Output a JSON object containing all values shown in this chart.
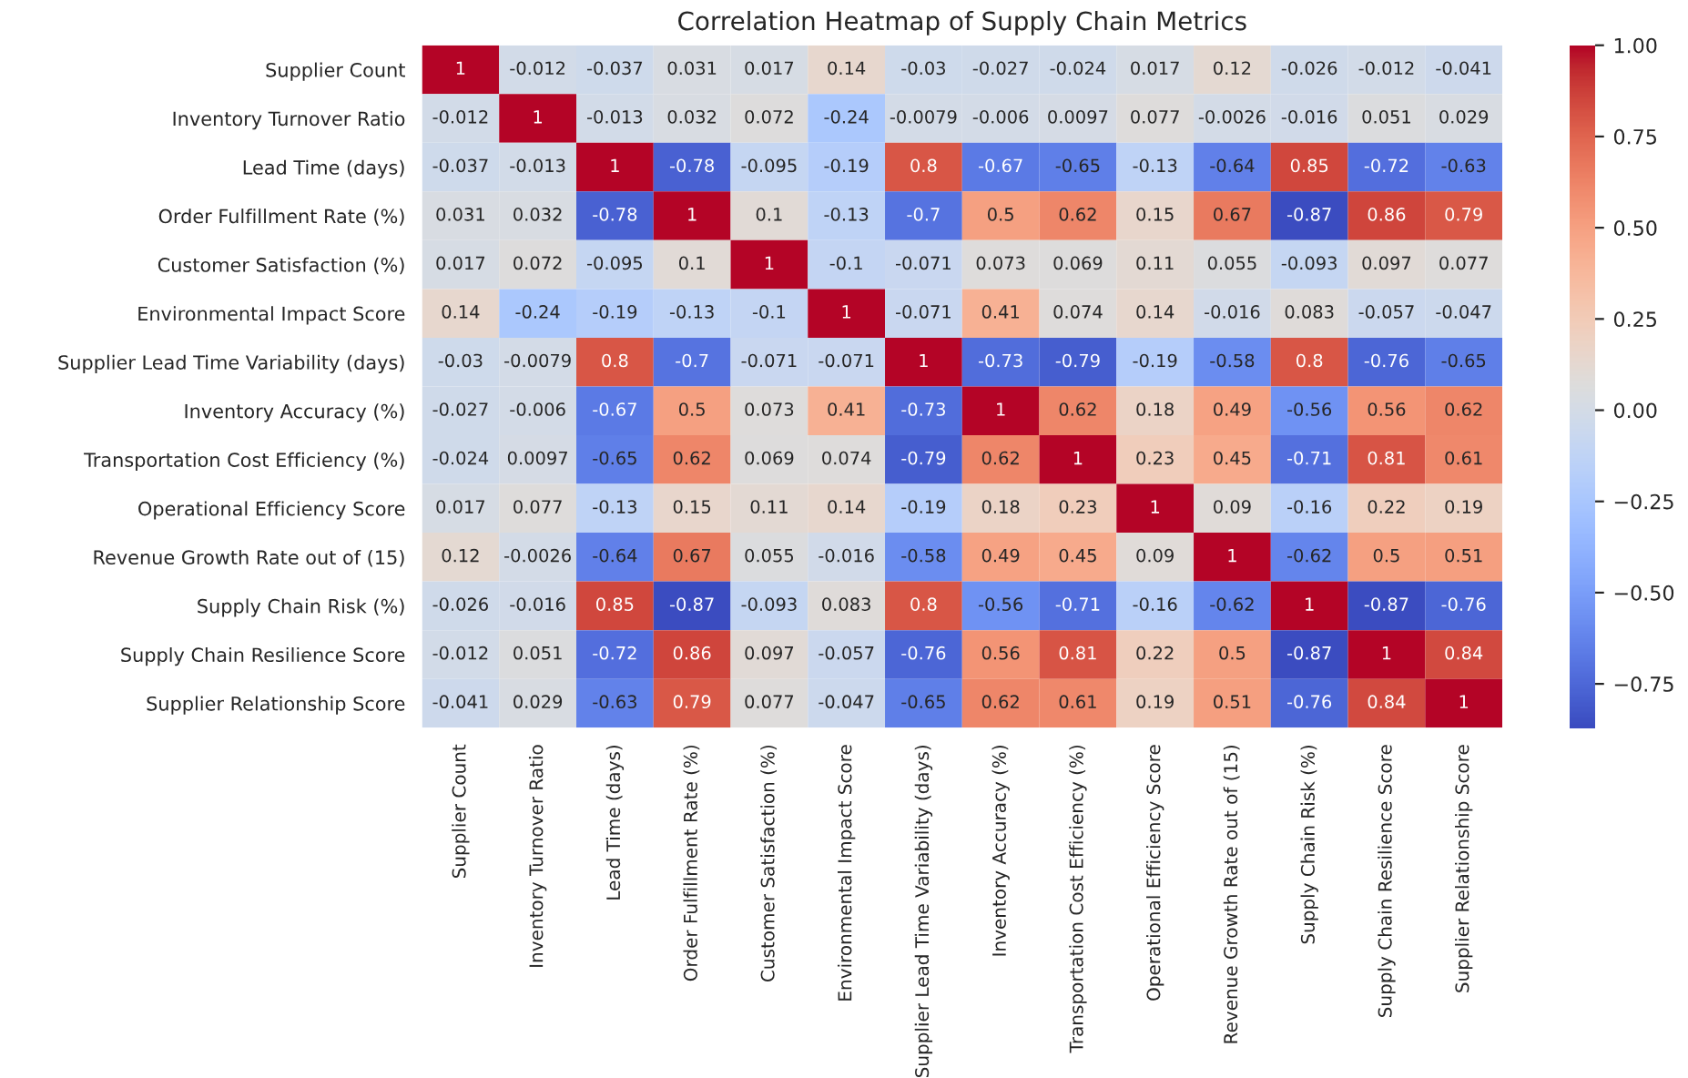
{
  "chart_data": {
    "type": "heatmap",
    "title": "Correlation Heatmap of Supply Chain Metrics",
    "categories": [
      "Supplier Count",
      "Inventory Turnover Ratio",
      "Lead Time (days)",
      "Order Fulfillment Rate (%)",
      "Customer Satisfaction (%)",
      "Environmental Impact Score",
      "Supplier Lead Time Variability (days)",
      "Inventory Accuracy (%)",
      "Transportation Cost Efficiency (%)",
      "Operational Efficiency Score",
      "Revenue Growth Rate out of (15)",
      "Supply Chain Risk (%)",
      "Supply Chain Resilience Score",
      "Supplier Relationship Score"
    ],
    "y_categories": [
      "Supplier Count",
      "Inventory Turnover Ratio",
      "Lead Time (days)",
      "Order Fulfillment Rate (%)",
      "Customer Satisfaction (%)",
      "Environmental Impact Score",
      "Supplier Lead Time Variability (days)",
      "Inventory Accuracy (%)",
      "Transportation Cost Efficiency (%)",
      "Operational Efficiency Score",
      "Revenue Growth Rate out of (15)",
      "Supply Chain Risk (%)",
      "Supply Chain Resilience Score",
      "Supplier Relationship Score"
    ],
    "cells": [
      [
        1,
        -0.012,
        -0.037,
        0.031,
        0.017,
        0.14,
        -0.03,
        -0.027,
        -0.024,
        0.017,
        0.12,
        -0.026,
        -0.012,
        -0.041
      ],
      [
        -0.012,
        1,
        -0.013,
        0.032,
        0.072,
        -0.24,
        -0.0079,
        -0.006,
        0.0097,
        0.077,
        -0.0026,
        -0.016,
        0.051,
        0.029
      ],
      [
        -0.037,
        -0.013,
        1,
        -0.78,
        -0.095,
        -0.19,
        0.8,
        -0.67,
        -0.65,
        -0.13,
        -0.64,
        0.85,
        -0.72,
        -0.63
      ],
      [
        0.031,
        0.032,
        -0.78,
        1,
        0.1,
        -0.13,
        -0.7,
        0.5,
        0.62,
        0.15,
        0.67,
        -0.87,
        0.86,
        0.79
      ],
      [
        0.017,
        0.072,
        -0.095,
        0.1,
        1,
        -0.1,
        -0.071,
        0.073,
        0.069,
        0.11,
        0.055,
        -0.093,
        0.097,
        0.077
      ],
      [
        0.14,
        -0.24,
        -0.19,
        -0.13,
        -0.1,
        1,
        -0.071,
        0.41,
        0.074,
        0.14,
        -0.016,
        0.083,
        -0.057,
        -0.047
      ],
      [
        -0.03,
        -0.0079,
        0.8,
        -0.7,
        -0.071,
        -0.071,
        1,
        -0.73,
        -0.79,
        -0.19,
        -0.58,
        0.8,
        -0.76,
        -0.65
      ],
      [
        -0.027,
        -0.006,
        -0.67,
        0.5,
        0.073,
        0.41,
        -0.73,
        1,
        0.62,
        0.18,
        0.49,
        -0.56,
        0.56,
        0.62
      ],
      [
        -0.024,
        0.0097,
        -0.65,
        0.62,
        0.069,
        0.074,
        -0.79,
        0.62,
        1,
        0.23,
        0.45,
        -0.71,
        0.81,
        0.61
      ],
      [
        0.017,
        0.077,
        -0.13,
        0.15,
        0.11,
        0.14,
        -0.19,
        0.18,
        0.23,
        1,
        0.09,
        -0.16,
        0.22,
        0.19
      ],
      [
        0.12,
        -0.0026,
        -0.64,
        0.67,
        0.055,
        -0.016,
        -0.58,
        0.49,
        0.45,
        0.09,
        1,
        -0.62,
        0.5,
        0.51
      ],
      [
        -0.026,
        -0.016,
        0.85,
        -0.87,
        -0.093,
        0.083,
        0.8,
        -0.56,
        -0.71,
        -0.16,
        -0.62,
        1,
        -0.87,
        -0.76
      ],
      [
        -0.012,
        0.051,
        -0.72,
        0.86,
        0.097,
        -0.057,
        -0.76,
        0.56,
        0.81,
        0.22,
        0.5,
        -0.87,
        1,
        0.84
      ],
      [
        -0.041,
        0.029,
        -0.63,
        0.79,
        0.077,
        -0.047,
        -0.65,
        0.62,
        0.61,
        0.19,
        0.51,
        -0.76,
        0.84,
        1
      ]
    ],
    "data_labels": true,
    "clim": [
      -0.87,
      1
    ],
    "cticks": [
      {
        "value": -0.75,
        "label": "−0.75"
      },
      {
        "value": -0.5,
        "label": "−0.50"
      },
      {
        "value": -0.25,
        "label": "−0.25"
      },
      {
        "value": 0,
        "label": "0.00"
      },
      {
        "value": 0.25,
        "label": "0.25"
      },
      {
        "value": 0.5,
        "label": "0.50"
      },
      {
        "value": 0.75,
        "label": "0.75"
      },
      {
        "value": 1,
        "label": "1.00"
      }
    ]
  }
}
